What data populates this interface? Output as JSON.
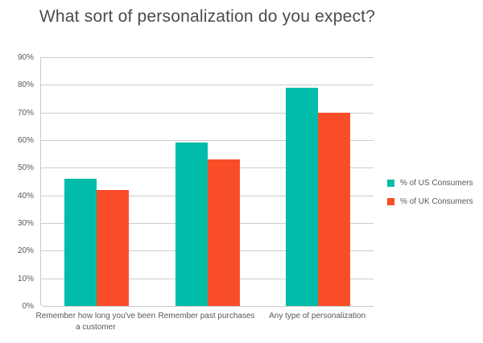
{
  "chart_data": {
    "type": "bar",
    "title": "What sort of personalization do you expect?",
    "categories": [
      "Remember how long you've been a customer",
      "Remember past purchases",
      "Any type of personalization"
    ],
    "series": [
      {
        "name": "% of US Consumers",
        "values": [
          46,
          59,
          79
        ],
        "color": "#00bca8"
      },
      {
        "name": "% of UK Consumers",
        "values": [
          42,
          53,
          70
        ],
        "color": "#f94d28"
      }
    ],
    "xlabel": "",
    "ylabel": "",
    "ylim": [
      0,
      90
    ],
    "y_tick_step": 10,
    "y_ticks": [
      "0%",
      "10%",
      "20%",
      "30%",
      "40%",
      "50%",
      "60%",
      "70%",
      "80%",
      "90%"
    ],
    "grid": "horizontal",
    "legend_position": "right"
  }
}
